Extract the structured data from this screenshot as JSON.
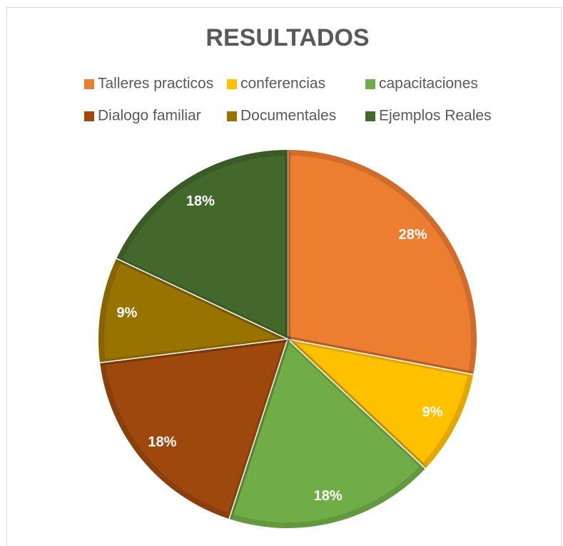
{
  "chart_data": {
    "type": "pie",
    "title": "RESULTADOS",
    "categories": [
      "Talleres practicos",
      "conferencias",
      "capacitaciones",
      "Dialogo familiar",
      "Documentales",
      "Ejemplos Reales"
    ],
    "values": [
      28,
      9,
      18,
      18,
      9,
      18
    ],
    "value_labels": [
      "28%",
      "9%",
      "18%",
      "18%",
      "9%",
      "18%"
    ],
    "colors": [
      "#ED7D31",
      "#FFC000",
      "#70AD47",
      "#9E480E",
      "#997300",
      "#43682B"
    ],
    "legend": "top"
  }
}
